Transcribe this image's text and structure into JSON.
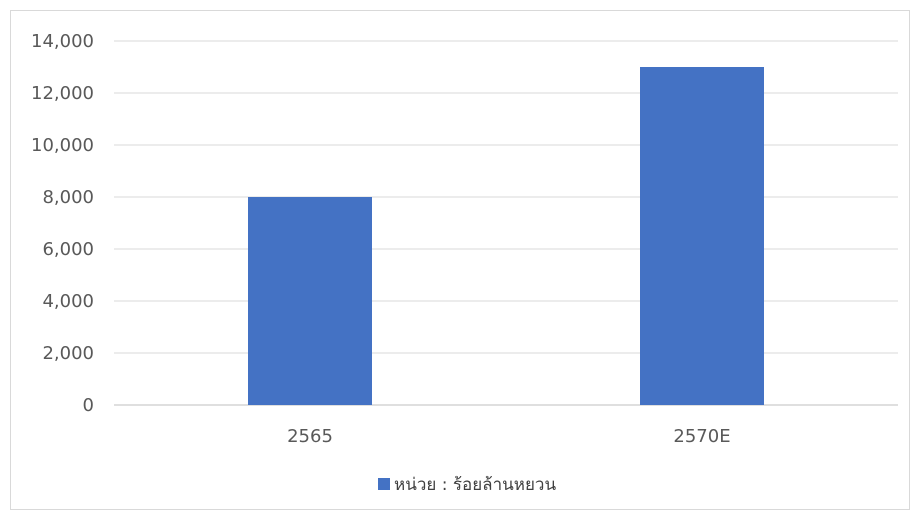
{
  "chart_data": {
    "type": "bar",
    "categories": [
      "2565",
      "2570E"
    ],
    "series": [
      {
        "name": "หน่วย : ร้อยล้านหยวน",
        "values": [
          8000,
          13000
        ],
        "color": "#4472C4"
      }
    ],
    "ylim": [
      0,
      14000
    ],
    "yticks": [
      0,
      2000,
      4000,
      6000,
      8000,
      10000,
      12000,
      14000
    ],
    "ytick_labels": [
      "0",
      "2,000",
      "4,000",
      "6,000",
      "8,000",
      "10,000",
      "12,000",
      "14,000"
    ],
    "grid": true,
    "legend_position": "bottom"
  }
}
